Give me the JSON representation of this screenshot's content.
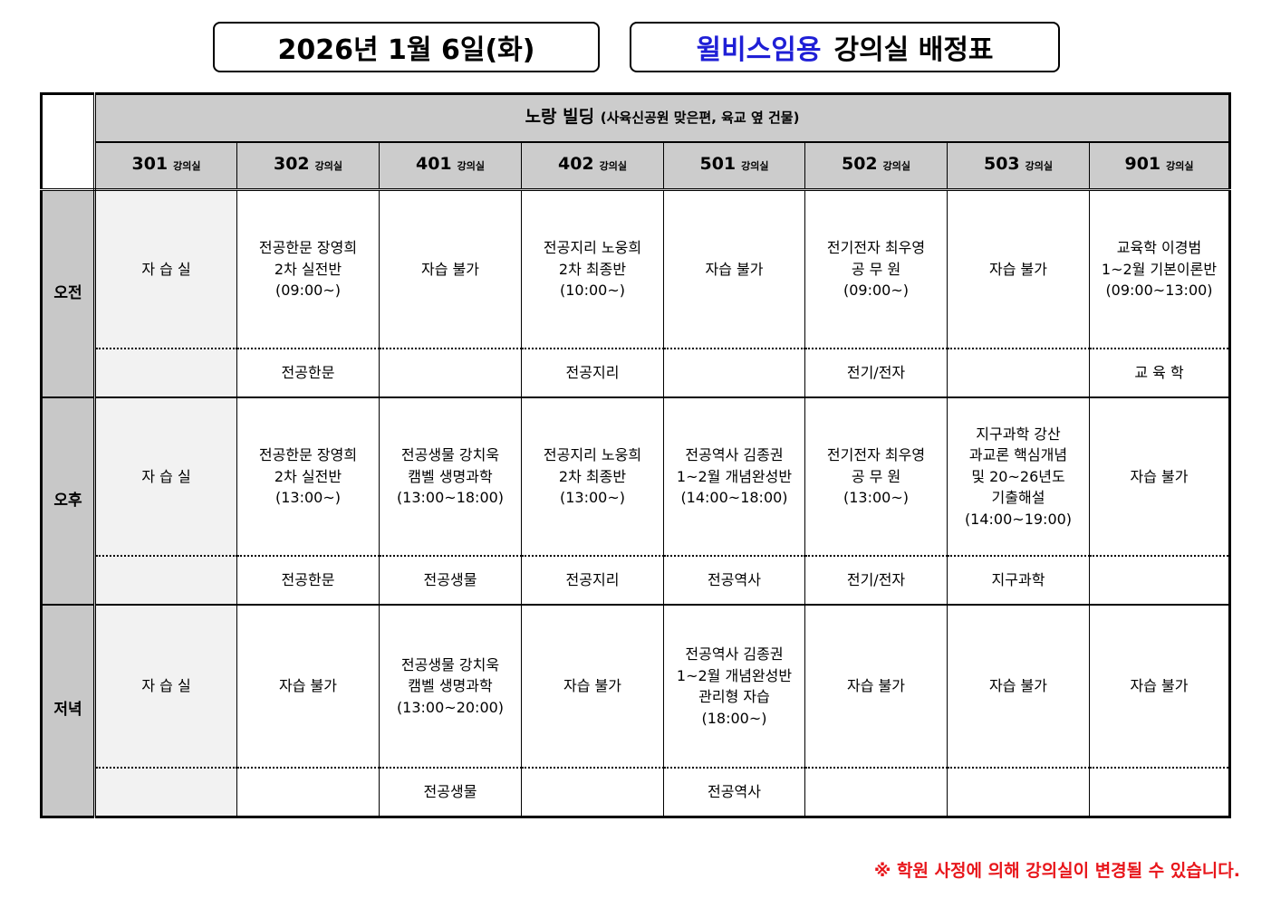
{
  "header": {
    "date_title": "2026년 1월 6일(화)",
    "brand": "윌비스임용",
    "schedule_title": "강의실 배정표"
  },
  "building": {
    "name": "노랑 빌딩",
    "detail": "(사육신공원 맞은편, 육교 옆 건물)"
  },
  "room_suffix": "강의실",
  "rooms": [
    "301",
    "302",
    "401",
    "402",
    "501",
    "502",
    "503",
    "901"
  ],
  "periods": [
    {
      "label": "오전",
      "main": [
        "자 습 실",
        "전공한문 장영희\n2차 실전반\n(09:00~)",
        "자습 불가",
        "전공지리 노웅희\n2차 최종반\n(10:00~)",
        "자습 불가",
        "전기전자 최우영\n공 무 원\n(09:00~)",
        "자습 불가",
        "교육학 이경범\n1~2월 기본이론반\n(09:00~13:00)"
      ],
      "sub": [
        "",
        "전공한문",
        "",
        "전공지리",
        "",
        "전기/전자",
        "",
        "교 육 학"
      ]
    },
    {
      "label": "오후",
      "main": [
        "자 습 실",
        "전공한문 장영희\n2차 실전반\n(13:00~)",
        "전공생물 강치욱\n캠벨 생명과학\n(13:00~18:00)",
        "전공지리 노웅희\n2차 최종반\n(13:00~)",
        "전공역사 김종권\n1~2월 개념완성반\n(14:00~18:00)",
        "전기전자 최우영\n공 무 원\n(13:00~)",
        "지구과학 강산\n과교론 핵심개념\n및 20~26년도\n기출해설\n(14:00~19:00)",
        "자습 불가"
      ],
      "sub": [
        "",
        "전공한문",
        "전공생물",
        "전공지리",
        "전공역사",
        "전기/전자",
        "지구과학",
        ""
      ]
    },
    {
      "label": "저녁",
      "main": [
        "자 습 실",
        "자습 불가",
        "전공생물 강치욱\n캠벨 생명과학\n(13:00~20:00)",
        "자습 불가",
        "전공역사 김종권\n1~2월 개념완성반\n관리형 자습\n(18:00~)",
        "자습 불가",
        "자습 불가",
        "자습 불가"
      ],
      "sub": [
        "",
        "",
        "전공생물",
        "",
        "전공역사",
        "",
        "",
        ""
      ]
    }
  ],
  "footnote": "※ 학원 사정에 의해 강의실이 변경될 수 있습니다.",
  "colors": {
    "brand_blue": "#1f1fd6",
    "note_red": "#e8161b",
    "header_gray": "#cccccc"
  }
}
